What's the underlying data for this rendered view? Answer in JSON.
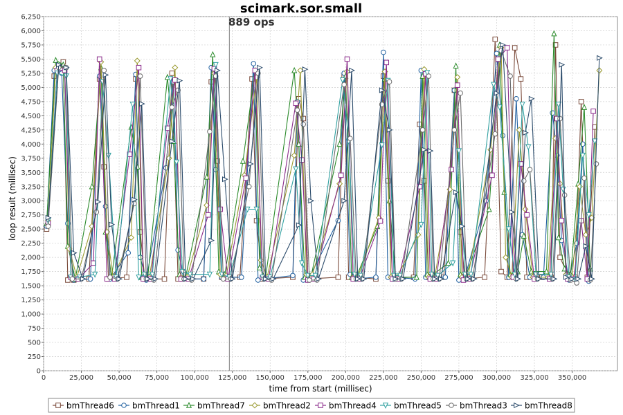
{
  "chart_data": {
    "type": "line",
    "title": "scimark.sor.small",
    "marker_label": "889 ops",
    "marker_x": 123000,
    "xlabel": "time from start (millisec)",
    "ylabel": "loop result (millisec)",
    "xlim": [
      0,
      380000
    ],
    "ylim": [
      0,
      6250
    ],
    "x_ticks": [
      0,
      25000,
      50000,
      75000,
      100000,
      125000,
      150000,
      175000,
      200000,
      225000,
      250000,
      275000,
      300000,
      325000,
      350000
    ],
    "x_tick_labels": [
      "0",
      "25,000",
      "50,000",
      "75,000",
      "100,000",
      "125,000",
      "150,000",
      "175,000",
      "200,000",
      "225,000",
      "250,000",
      "275,000",
      "300,000",
      "325,000",
      "350,000"
    ],
    "y_ticks": [
      0,
      250,
      500,
      750,
      1000,
      1250,
      1500,
      1750,
      2000,
      2250,
      2500,
      2750,
      3000,
      3250,
      3500,
      3750,
      4000,
      4250,
      4500,
      4750,
      5000,
      5250,
      5500,
      5750,
      6000,
      6250
    ],
    "y_tick_labels": [
      "0",
      "250",
      "500",
      "750",
      "1,000",
      "1,250",
      "1,500",
      "1,750",
      "2,000",
      "2,250",
      "2,500",
      "2,750",
      "3,000",
      "3,250",
      "3,500",
      "3,750",
      "4,000",
      "4,250",
      "4,500",
      "4,750",
      "5,000",
      "5,250",
      "5,500",
      "5,750",
      "6,000",
      "6,250"
    ],
    "grid": true,
    "legend_position": "bottom",
    "series": [
      {
        "name": "bmThread6",
        "color": "#7a4a3a",
        "marker": "square",
        "x": [
          2000,
          7000,
          13000,
          16000,
          20000,
          30000,
          37000,
          40000,
          43000,
          55000,
          61000,
          64000,
          67000,
          80000,
          85000,
          89000,
          92000,
          106000,
          111000,
          115000,
          118000,
          130000,
          138000,
          141000,
          145000,
          165000,
          169000,
          172000,
          175000,
          195000,
          199000,
          202000,
          205000,
          220000,
          225000,
          228000,
          231000,
          245000,
          249000,
          252000,
          255000,
          265000,
          272000,
          276000,
          279000,
          292000,
          299000,
          303000,
          307000,
          312000,
          316000,
          320000,
          330000,
          336000,
          339000,
          342000,
          347000,
          352000,
          356000,
          360000,
          365000
        ],
        "y": [
          2500,
          5200,
          5450,
          1600,
          1600,
          1620,
          5150,
          3600,
          1620,
          1650,
          5150,
          2450,
          1620,
          1620,
          5250,
          1620,
          1620,
          1620,
          5100,
          3700,
          1650,
          1650,
          5150,
          2650,
          1620,
          1650,
          4800,
          4450,
          1620,
          1650,
          5200,
          1650,
          1650,
          1620,
          5200,
          3350,
          1650,
          1650,
          4350,
          3350,
          1650,
          1650,
          4950,
          2450,
          1620,
          1650,
          5850,
          1750,
          1650,
          5700,
          5150,
          1650,
          1650,
          1650,
          5750,
          2000,
          1700,
          1650,
          4750,
          1650,
          4300
        ]
      },
      {
        "name": "bmThread1",
        "color": "#2060a0",
        "marker": "circle",
        "x": [
          2000,
          7000,
          12000,
          16000,
          20000,
          31000,
          37000,
          41000,
          44000,
          56000,
          61000,
          64000,
          68000,
          81000,
          86000,
          89000,
          93000,
          106000,
          111000,
          114000,
          118000,
          131000,
          139000,
          142000,
          146000,
          165000,
          168000,
          172000,
          176000,
          195000,
          199000,
          203000,
          206000,
          220000,
          225000,
          228000,
          232000,
          246000,
          250000,
          253000,
          257000,
          266000,
          272000,
          275000,
          279000,
          293000,
          300000,
          304000,
          308000,
          313000,
          317000,
          322000,
          331000,
          337000,
          340000,
          343000,
          348000,
          353000,
          357000,
          361000
        ],
        "y": [
          2550,
          5300,
          5250,
          2600,
          1600,
          1620,
          5200,
          2900,
          1620,
          2080,
          5230,
          2000,
          1600,
          3580,
          5100,
          2130,
          1620,
          1620,
          5350,
          3550,
          1650,
          1650,
          5420,
          1600,
          1620,
          1680,
          4750,
          1600,
          1650,
          2650,
          5250,
          1700,
          1620,
          1650,
          5620,
          1650,
          1650,
          1620,
          5300,
          1650,
          1650,
          1650,
          4950,
          1600,
          1650,
          3000,
          5600,
          4150,
          1650,
          4800,
          2400,
          1650,
          1650,
          4550,
          3800,
          2300,
          1600,
          2250,
          4000,
          1580
        ]
      },
      {
        "name": "bmThread7",
        "color": "#2a8a2a",
        "marker": "triangle-up",
        "x": [
          2000,
          8000,
          13000,
          16000,
          21000,
          32000,
          38000,
          41000,
          45000,
          58000,
          62000,
          65000,
          69000,
          82000,
          86000,
          90000,
          94000,
          108000,
          112000,
          116000,
          120000,
          132000,
          140000,
          143000,
          147000,
          166000,
          169000,
          173000,
          177000,
          196000,
          200000,
          204000,
          207000,
          221000,
          226000,
          229000,
          233000,
          247000,
          251000,
          254000,
          258000,
          268000,
          273000,
          276000,
          280000,
          295000,
          302000,
          305000,
          309000,
          314000,
          318000,
          323000,
          333000,
          338000,
          341000,
          345000,
          349000,
          354000,
          358000,
          362000
        ],
        "y": [
          2600,
          5480,
          5400,
          2200,
          1620,
          3250,
          5350,
          2450,
          1650,
          4300,
          3600,
          1650,
          1650,
          5180,
          4050,
          1700,
          1650,
          3420,
          5580,
          1750,
          1700,
          3700,
          5300,
          1820,
          1650,
          5300,
          4000,
          1650,
          1650,
          4000,
          5200,
          1650,
          1650,
          2550,
          5150,
          3000,
          1650,
          1650,
          5200,
          1700,
          1700,
          1900,
          5380,
          1700,
          1700,
          2850,
          5750,
          3150,
          1700,
          1750,
          2380,
          1750,
          1750,
          5950,
          2350,
          1800,
          1700,
          3300,
          4650,
          1800
        ]
      },
      {
        "name": "bmThread2",
        "color": "#9a9a30",
        "marker": "diamond",
        "x": [
          3000,
          8000,
          14000,
          17000,
          22000,
          32000,
          38000,
          42000,
          46000,
          58000,
          62000,
          66000,
          70000,
          83000,
          87000,
          91000,
          95000,
          108000,
          113000,
          117000,
          121000,
          133000,
          141000,
          144000,
          148000,
          166000,
          170000,
          174000,
          178000,
          196000,
          201000,
          205000,
          208000,
          222000,
          226000,
          230000,
          234000,
          248000,
          252000,
          255000,
          259000,
          269000,
          274000,
          277000,
          281000,
          296000,
          303000,
          306000,
          310000,
          315000,
          319000,
          324000,
          334000,
          339000,
          342000,
          346000,
          350000,
          355000,
          359000,
          363000,
          368000
        ],
        "y": [
          2650,
          5350,
          5350,
          2150,
          1650,
          2550,
          5450,
          2450,
          1650,
          2350,
          5470,
          1650,
          1650,
          3750,
          5350,
          1650,
          1650,
          2920,
          5250,
          1700,
          1680,
          3450,
          5180,
          1950,
          1650,
          3800,
          5300,
          1700,
          1700,
          3300,
          5280,
          1650,
          1650,
          2700,
          5280,
          1650,
          1650,
          2400,
          5320,
          1650,
          1650,
          3200,
          5180,
          1650,
          1650,
          3900,
          5700,
          2000,
          1650,
          4250,
          2850,
          1650,
          1650,
          4100,
          3300,
          1700,
          1650,
          3250,
          2400,
          2700,
          5300
        ]
      },
      {
        "name": "bmThread4",
        "color": "#8a2a8a",
        "marker": "rect",
        "x": [
          3000,
          9000,
          14000,
          18000,
          23000,
          33000,
          37000,
          42000,
          47000,
          57000,
          63000,
          66000,
          71000,
          82000,
          87000,
          91000,
          96000,
          109000,
          113000,
          117000,
          122000,
          134000,
          140000,
          145000,
          149000,
          167000,
          171000,
          175000,
          179000,
          197000,
          201000,
          205000,
          209000,
          223000,
          227000,
          231000,
          235000,
          249000,
          253000,
          256000,
          260000,
          270000,
          274000,
          278000,
          282000,
          297000,
          301000,
          307000,
          311000,
          316000,
          320000,
          325000,
          335000,
          340000,
          343000,
          347000,
          351000,
          356000,
          360000,
          364000
        ],
        "y": [
          2600,
          5300,
          5300,
          1650,
          1620,
          1900,
          5500,
          1620,
          1620,
          3820,
          5350,
          1620,
          1620,
          4280,
          5130,
          1620,
          1620,
          2750,
          5330,
          2850,
          1620,
          3400,
          5300,
          1650,
          1620,
          4720,
          3720,
          1600,
          1620,
          3450,
          5500,
          1620,
          1620,
          2640,
          5440,
          1620,
          1620,
          3250,
          5240,
          1620,
          1620,
          3550,
          5040,
          1600,
          1620,
          3450,
          5500,
          5700,
          1650,
          3650,
          2750,
          1620,
          1620,
          4450,
          2650,
          1620,
          1620,
          2650,
          1620,
          4580
        ]
      },
      {
        "name": "bmThread5",
        "color": "#30a0a0",
        "marker": "triangle-down",
        "x": [
          3000,
          9000,
          15000,
          18000,
          24000,
          34000,
          39000,
          43000,
          48000,
          59000,
          63000,
          67000,
          72000,
          84000,
          88000,
          92000,
          97000,
          110000,
          114000,
          118000,
          123000,
          135000,
          141000,
          145000,
          150000,
          167000,
          171000,
          175000,
          180000,
          198000,
          202000,
          206000,
          210000,
          224000,
          228000,
          232000,
          236000,
          250000,
          254000,
          257000,
          261000,
          271000,
          275000,
          279000,
          283000,
          298000,
          302000,
          308000,
          312000,
          317000,
          321000,
          326000,
          336000,
          341000,
          344000,
          348000,
          352000,
          357000,
          361000,
          365000
        ],
        "y": [
          2650,
          5250,
          5200,
          1650,
          1650,
          1700,
          5100,
          3800,
          1650,
          4700,
          1650,
          1700,
          1700,
          5150,
          3680,
          1750,
          1700,
          1700,
          5400,
          1700,
          1650,
          2850,
          2850,
          1650,
          1650,
          3560,
          1900,
          1680,
          1680,
          5130,
          4050,
          1700,
          1680,
          3980,
          5120,
          1680,
          1680,
          2580,
          5260,
          1700,
          1680,
          1900,
          3880,
          1700,
          1700,
          5050,
          4650,
          2500,
          1700,
          4700,
          3950,
          1700,
          1700,
          4700,
          3200,
          1650,
          1600,
          3800,
          2750,
          4050
        ]
      },
      {
        "name": "bmThread3",
        "color": "#6a6a6a",
        "marker": "circle-open",
        "x": [
          3000,
          10000,
          15000,
          19000,
          25000,
          35000,
          40000,
          44000,
          49000,
          60000,
          64000,
          68000,
          73000,
          85000,
          89000,
          93000,
          98000,
          110000,
          114000,
          119000,
          124000,
          136000,
          142000,
          146000,
          151000,
          168000,
          172000,
          176000,
          181000,
          199000,
          203000,
          207000,
          211000,
          224000,
          229000,
          233000,
          237000,
          251000,
          255000,
          258000,
          262000,
          272000,
          276000,
          280000,
          284000,
          299000,
          303000,
          309000,
          313000,
          318000,
          322000,
          327000,
          337000,
          342000,
          345000,
          349000,
          353000,
          358000,
          362000,
          366000
        ],
        "y": [
          2550,
          5350,
          5350,
          1620,
          1620,
          2800,
          5300,
          1650,
          1620,
          2950,
          5200,
          1620,
          1600,
          4650,
          4950,
          1620,
          1600,
          4220,
          5200,
          1620,
          1620,
          3250,
          5250,
          1620,
          1600,
          4600,
          4350,
          1600,
          1600,
          5050,
          4100,
          1620,
          1620,
          4700,
          5100,
          1620,
          1620,
          4250,
          5200,
          1620,
          1620,
          4250,
          4900,
          1620,
          1620,
          4180,
          5650,
          5200,
          1620,
          3350,
          3550,
          1620,
          1620,
          4450,
          3100,
          1600,
          1550,
          3400,
          1600,
          3650
        ]
      },
      {
        "name": "bmThread8",
        "color": "#2a4a6a",
        "marker": "triangle-right",
        "x": [
          3000,
          10000,
          15000,
          20000,
          26000,
          36000,
          41000,
          45000,
          50000,
          60000,
          65000,
          69000,
          74000,
          85000,
          90000,
          94000,
          99000,
          111000,
          115000,
          120000,
          125000,
          137000,
          143000,
          147000,
          152000,
          169000,
          173000,
          177000,
          182000,
          199000,
          204000,
          208000,
          212000,
          224000,
          229000,
          233000,
          238000,
          252000,
          256000,
          259000,
          263000,
          273000,
          277000,
          281000,
          285000,
          300000,
          304000,
          310000,
          314000,
          319000,
          323000,
          328000,
          338000,
          343000,
          346000,
          350000,
          354000,
          359000,
          363000,
          368000
        ],
        "y": [
          2700,
          5400,
          5350,
          2080,
          1620,
          2980,
          5220,
          2580,
          1620,
          3020,
          4710,
          1620,
          1620,
          4050,
          5120,
          1620,
          1620,
          2300,
          5300,
          3380,
          1620,
          3650,
          5350,
          1620,
          1620,
          2570,
          5320,
          3000,
          1620,
          3000,
          5300,
          1620,
          1620,
          4950,
          4250,
          1620,
          1620,
          3900,
          3880,
          1620,
          1620,
          3150,
          2550,
          1620,
          1620,
          4900,
          5750,
          2800,
          1620,
          4200,
          4800,
          1620,
          1620,
          5400,
          1650,
          1620,
          1620,
          2200,
          1620,
          5520
        ]
      }
    ]
  }
}
